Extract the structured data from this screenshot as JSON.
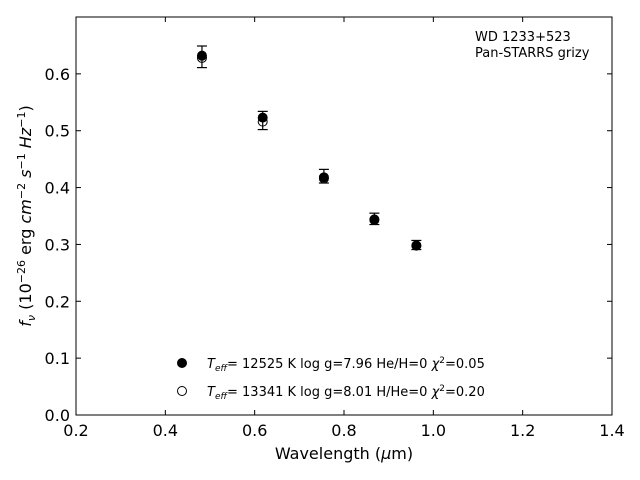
{
  "chart_data": {
    "type": "scatter",
    "annotation": [
      "WD 1233+523",
      "Pan-STARRS grizy"
    ],
    "xlabel": "Wavelength (μm)",
    "ylabel": "fν (10⁻²⁶ erg cm⁻² s⁻¹ Hz⁻¹)",
    "xlim": [
      0.2,
      1.4
    ],
    "ylim": [
      0.0,
      0.7
    ],
    "xticks": [
      "0.2",
      "0.4",
      "0.6",
      "0.8",
      "1.0",
      "1.2",
      "1.4"
    ],
    "yticks": [
      "0.0",
      "0.1",
      "0.2",
      "0.3",
      "0.4",
      "0.5",
      "0.6"
    ],
    "grid": false,
    "legend_position": "bottom-center",
    "observed": {
      "x": [
        0.482,
        0.618,
        0.755,
        0.868,
        0.962
      ],
      "y": [
        0.63,
        0.518,
        0.42,
        0.345,
        0.299
      ],
      "yerr": [
        0.019,
        0.016,
        0.012,
        0.01,
        0.008
      ]
    },
    "series": [
      {
        "name": "Teff= 12525 K  log g=7.96  He/H=0  χ²=0.05",
        "marker": "filled-circle",
        "x": [
          0.482,
          0.618,
          0.755,
          0.868,
          0.962
        ],
        "y": [
          0.632,
          0.523,
          0.418,
          0.344,
          0.298
        ]
      },
      {
        "name": "Teff= 13341 K  log g=8.01  H/He=0  χ²=0.20",
        "marker": "open-circle",
        "x": [
          0.482,
          0.618,
          0.755,
          0.868,
          0.962
        ],
        "y": [
          0.628,
          0.516,
          0.416,
          0.343,
          0.298
        ]
      }
    ]
  }
}
